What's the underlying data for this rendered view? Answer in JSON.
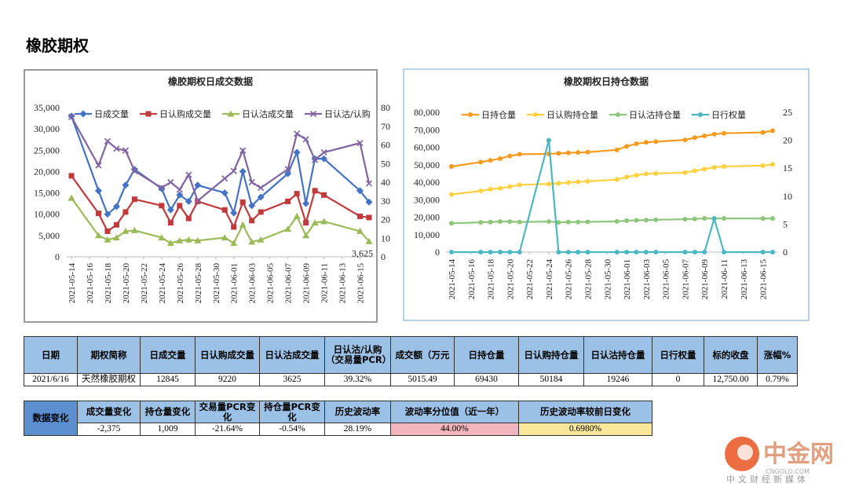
{
  "page_title": "橡胶期权",
  "chart_data": [
    {
      "type": "line",
      "title": "橡胶期权日成交数据",
      "x": [
        "2021-05-14",
        "2021-05-17",
        "2021-05-18",
        "2021-05-19",
        "2021-05-20",
        "2021-05-21",
        "2021-05-24",
        "2021-05-25",
        "2021-05-26",
        "2021-05-27",
        "2021-05-28",
        "2021-05-31",
        "2021-06-01",
        "2021-06-02",
        "2021-06-03",
        "2021-06-04",
        "2021-06-07",
        "2021-06-08",
        "2021-06-09",
        "2021-06-10",
        "2021-06-11",
        "2021-06-15",
        "2021-06-16"
      ],
      "xlim": [
        "2021-05-14",
        "2021-06-16"
      ],
      "xticks": [
        "2021-05-14",
        "2021-05-16",
        "2021-05-18",
        "2021-05-20",
        "2021-05-22",
        "2021-05-24",
        "2021-05-26",
        "2021-05-28",
        "2021-05-30",
        "2021-06-01",
        "2021-06-03",
        "2021-06-05",
        "2021-06-07",
        "2021-06-09",
        "2021-06-11",
        "2021-06-13",
        "2021-06-15"
      ],
      "ylim": [
        0,
        35000
      ],
      "yticks": [
        0,
        {
          "value": 5000,
          "label": "5,000"
        },
        {
          "value": 10000,
          "label": "10,000"
        },
        {
          "value": 15000,
          "label": "15,000"
        },
        {
          "value": 20000,
          "label": "20,000"
        },
        {
          "value": 25000,
          "label": "25,000"
        },
        {
          "value": 30000,
          "label": "30,000"
        },
        {
          "value": 35000,
          "label": "35,000"
        }
      ],
      "y2lim": [
        0,
        80
      ],
      "y2ticks": [
        0,
        10,
        20,
        30,
        40,
        50,
        60,
        70,
        80
      ],
      "grid": false,
      "legend": "top",
      "series": [
        {
          "name": "日成交量",
          "color": "#4472c4",
          "marker": "diamond",
          "values": [
            33000,
            15500,
            10000,
            11800,
            16800,
            20500,
            16000,
            11000,
            14500,
            13000,
            16800,
            15000,
            10300,
            20000,
            12000,
            14000,
            19500,
            24500,
            12500,
            23000,
            23000,
            15500,
            12845
          ]
        },
        {
          "name": "日认购成交量",
          "color": "#c0393b",
          "marker": "square",
          "values": [
            19000,
            10200,
            6000,
            7500,
            10500,
            13500,
            12000,
            8000,
            12000,
            9000,
            13000,
            11000,
            7000,
            12800,
            8500,
            10500,
            13000,
            14800,
            8000,
            15500,
            14500,
            9500,
            9220
          ]
        },
        {
          "name": "日认沽成交量",
          "color": "#9bbb59",
          "marker": "triangle",
          "values": [
            13800,
            5000,
            4000,
            4500,
            6000,
            6200,
            4500,
            3200,
            3800,
            4000,
            3800,
            4500,
            3200,
            7500,
            3500,
            4000,
            6500,
            9500,
            5000,
            8000,
            8300,
            6000,
            3625
          ],
          "value_labels": [
            null,
            null,
            null,
            null,
            null,
            null,
            null,
            null,
            null,
            null,
            null,
            null,
            null,
            null,
            null,
            null,
            null,
            null,
            null,
            null,
            null,
            null,
            "3,625"
          ]
        },
        {
          "name": "日认沽/认购",
          "color": "#8064a2",
          "marker": "x",
          "axis": "y2",
          "values": [
            75,
            49,
            62,
            58,
            57,
            46,
            37,
            40,
            36,
            44,
            30,
            42,
            46,
            57,
            40,
            37,
            47,
            66,
            63,
            52,
            56,
            61,
            39.32
          ]
        }
      ]
    },
    {
      "type": "line",
      "title": "橡胶期权日持仓数据",
      "x": [
        "2021-05-14",
        "2021-05-17",
        "2021-05-18",
        "2021-05-19",
        "2021-05-20",
        "2021-05-21",
        "2021-05-24",
        "2021-05-25",
        "2021-05-26",
        "2021-05-27",
        "2021-05-28",
        "2021-05-31",
        "2021-06-01",
        "2021-06-02",
        "2021-06-03",
        "2021-06-04",
        "2021-06-07",
        "2021-06-08",
        "2021-06-09",
        "2021-06-10",
        "2021-06-11",
        "2021-06-15",
        "2021-06-16"
      ],
      "xlim": [
        "2021-05-14",
        "2021-06-16"
      ],
      "xticks": [
        "2021-05-14",
        "2021-05-16",
        "2021-05-18",
        "2021-05-20",
        "2021-05-22",
        "2021-05-24",
        "2021-05-26",
        "2021-05-28",
        "2021-05-30",
        "2021-06-01",
        "2021-06-03",
        "2021-06-05",
        "2021-06-07",
        "2021-06-09",
        "2021-06-11",
        "2021-06-13",
        "2021-06-15"
      ],
      "ylim": [
        0,
        80000
      ],
      "yticks": [
        0,
        {
          "value": 10000,
          "label": "10,000"
        },
        {
          "value": 20000,
          "label": "20,000"
        },
        {
          "value": 30000,
          "label": "30,000"
        },
        {
          "value": 40000,
          "label": "40,000"
        },
        {
          "value": 50000,
          "label": "50,000"
        },
        {
          "value": 60000,
          "label": "60,000"
        },
        {
          "value": 70000,
          "label": "70,000"
        },
        {
          "value": 80000,
          "label": "80,000"
        }
      ],
      "y2lim": [
        0,
        25
      ],
      "y2ticks": [
        0,
        5,
        10,
        15,
        20,
        25
      ],
      "grid": false,
      "legend": "top",
      "series": [
        {
          "name": "日持仓量",
          "color": "#f79a1e",
          "marker": "circle",
          "values": [
            49000,
            51500,
            52500,
            53500,
            55000,
            56000,
            56200,
            56500,
            56800,
            57000,
            57200,
            58500,
            60500,
            62000,
            62800,
            63200,
            64200,
            65500,
            66500,
            67500,
            68000,
            68500,
            69430
          ]
        },
        {
          "name": "日认购持仓量",
          "color": "#ffd040",
          "marker": "circle",
          "values": [
            33000,
            35000,
            36000,
            36500,
            37500,
            38500,
            39000,
            39300,
            39800,
            40200,
            40500,
            41500,
            43000,
            44000,
            44800,
            45000,
            45500,
            46500,
            47500,
            48500,
            49000,
            49500,
            50184
          ]
        },
        {
          "name": "日认沽持仓量",
          "color": "#8dc57a",
          "marker": "circle",
          "values": [
            16500,
            17000,
            17200,
            17500,
            17500,
            17200,
            17500,
            17000,
            17200,
            17200,
            17300,
            17600,
            18000,
            18200,
            18300,
            18500,
            18800,
            19000,
            19300,
            19200,
            19300,
            19200,
            19246
          ]
        },
        {
          "name": "日行权量",
          "color": "#4bb7c1",
          "marker": "circle",
          "axis": "y2",
          "values": [
            0,
            0,
            0,
            0,
            0,
            0,
            20,
            0,
            0,
            0,
            0,
            0,
            0,
            0,
            0,
            0,
            0,
            0,
            0,
            6,
            0,
            0,
            0
          ]
        }
      ]
    }
  ],
  "table": {
    "headers": [
      "日期",
      "期权简称",
      "日成交量",
      "日认购成交量",
      "日认沽成交量",
      "日认沽/认购（交易量PCR）",
      "成交额（万元",
      "日持仓量",
      "日认购持仓量",
      "日认沽持仓量",
      "日行权量",
      "标的收盘",
      "涨幅%"
    ],
    "rows": [
      [
        "2021/6/16",
        "天然橡胶期权",
        "12845",
        "9220",
        "3625",
        "39.32%",
        "5015.49",
        "69430",
        "50184",
        "19246",
        "0",
        "12,750.00",
        "0.79%"
      ]
    ]
  },
  "changes": {
    "label": "数据变化",
    "headers": [
      "成交量变化",
      "持仓量变化",
      "交易量PCR变化",
      "持仓量PCR变化",
      "历史波动率",
      "波动率分位值（近一年）",
      "历史波动率较前日变化"
    ],
    "rows": [
      [
        "-2,375",
        "1,009",
        "-21.64%",
        "-0.54%",
        "28.19%",
        "44.00%",
        "0.6980%"
      ]
    ]
  },
  "watermark": {
    "brand": "中金网",
    "domain": "CNGOLD.COM",
    "slogan": "中文财经新媒体"
  }
}
